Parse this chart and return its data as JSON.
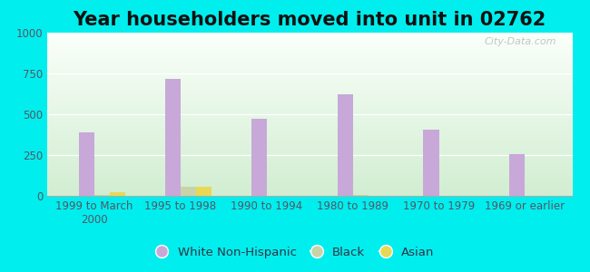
{
  "title": "Year householders moved into unit in 02762",
  "categories": [
    "1999 to March\n2000",
    "1995 to 1998",
    "1990 to 1994",
    "1980 to 1989",
    "1970 to 1979",
    "1969 or earlier"
  ],
  "white_non_hispanic": [
    390,
    718,
    470,
    620,
    405,
    253
  ],
  "black": [
    8,
    55,
    0,
    8,
    0,
    0
  ],
  "asian": [
    22,
    55,
    0,
    0,
    0,
    0
  ],
  "bar_width": 0.18,
  "white_color": "#c8a8d8",
  "black_color": "#c8d4a8",
  "asian_color": "#e8d855",
  "ylim": [
    0,
    1000
  ],
  "yticks": [
    0,
    250,
    500,
    750,
    1000
  ],
  "background_color": "#00EEEE",
  "watermark": "City-Data.com",
  "title_fontsize": 15,
  "tick_fontsize": 8.5,
  "legend_fontsize": 9.5
}
